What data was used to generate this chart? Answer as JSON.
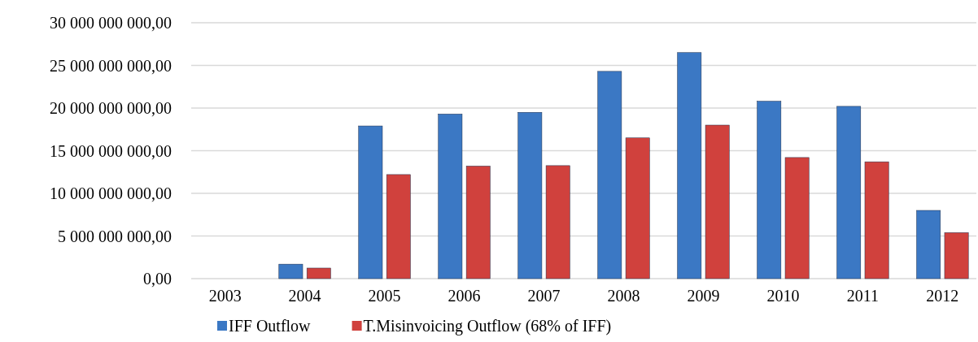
{
  "chart_data": {
    "type": "bar",
    "categories": [
      "2003",
      "2004",
      "2005",
      "2006",
      "2007",
      "2008",
      "2009",
      "2010",
      "2011",
      "2012"
    ],
    "series": [
      {
        "name": "IFF Outflow",
        "color": "#3b78c4",
        "values": [
          0,
          1700000000,
          17900000000,
          19300000000,
          19500000000,
          24300000000,
          26500000000,
          20800000000,
          20200000000,
          8000000000
        ]
      },
      {
        "name": "T.Misinvoicing Outflow (68% of IFF)",
        "color": "#d0413d",
        "values": [
          0,
          1240000000,
          12200000000,
          13200000000,
          13250000000,
          16500000000,
          18000000000,
          14200000000,
          13700000000,
          5400000000
        ]
      }
    ],
    "ylim": [
      0,
      30000000000
    ],
    "yticks": [
      {
        "value": 0,
        "label": "0,00"
      },
      {
        "value": 5000000000,
        "label": "5 000 000 000,00"
      },
      {
        "value": 10000000000,
        "label": "10 000 000 000,00"
      },
      {
        "value": 15000000000,
        "label": "15 000 000 000,00"
      },
      {
        "value": 20000000000,
        "label": "20 000 000 000,00"
      },
      {
        "value": 25000000000,
        "label": "25 000 000 000,00"
      },
      {
        "value": 30000000000,
        "label": "30 000 000 000,00"
      }
    ],
    "grid": "y",
    "legend": "bottom"
  }
}
